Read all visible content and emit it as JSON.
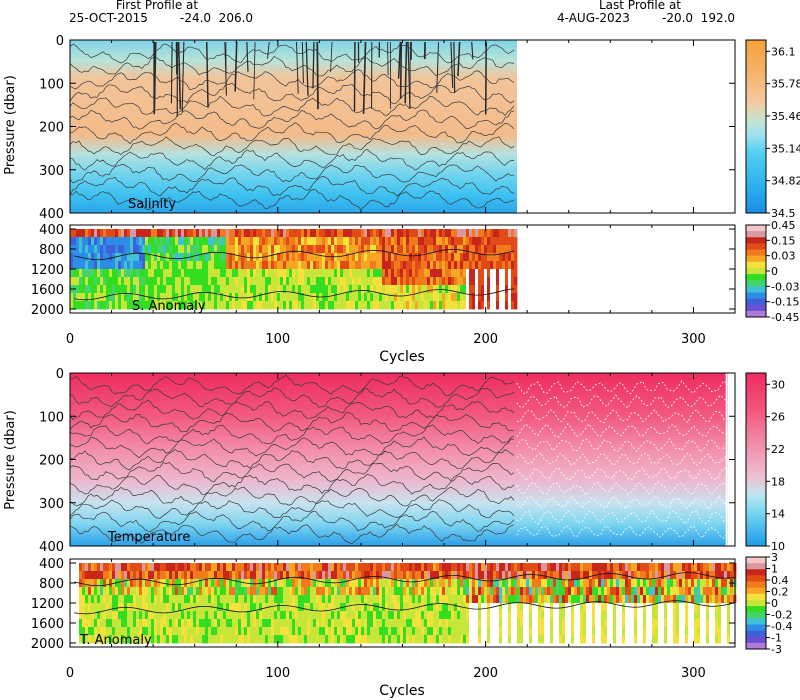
{
  "header": {
    "first_label": "First Profile at",
    "first_date": "25-OCT-2015",
    "first_pos": "-24.0  206.0",
    "last_label": "Last Profile at",
    "last_date": "4-AUG-2023",
    "last_pos": "-20.0  192.0"
  },
  "chart_data": [
    {
      "type": "heatmap",
      "name": "Salinity",
      "ylabel": "Pressure (dbar)",
      "yticks": [
        "0",
        "100",
        "200",
        "300",
        "400"
      ],
      "x_range": [
        0,
        320
      ],
      "y_range": [
        0,
        400
      ],
      "data_cycles": [
        0,
        215
      ],
      "colorbar_ticks": [
        "36.1",
        "35.78",
        "35.46",
        "35.14",
        "34.82",
        "34.5"
      ],
      "colorbar_colors": [
        "#f5a13c",
        "#f9bd7c",
        "#f2c9a0",
        "#c8e3d0",
        "#8ddcea",
        "#4ecbf0",
        "#2aa9ec",
        "#1e8ee6"
      ]
    },
    {
      "type": "heatmap",
      "name": "S. Anomaly",
      "yticks": [
        "400",
        "800",
        "1200",
        "1600",
        "2000"
      ],
      "y_range": [
        400,
        2000
      ],
      "data_cycles": [
        0,
        215
      ],
      "colorbar_ticks": [
        "0.45",
        "0.15",
        "0.03",
        "0",
        "-0.03",
        "-0.15",
        "-0.45"
      ]
    },
    {
      "type": "heatmap",
      "name": "Temperature",
      "ylabel": "Pressure (dbar)",
      "yticks": [
        "0",
        "100",
        "200",
        "300",
        "400"
      ],
      "y_range": [
        0,
        400
      ],
      "data_cycles": [
        0,
        320
      ],
      "colorbar_ticks": [
        "30",
        "26",
        "22",
        "18",
        "14",
        "10"
      ],
      "colorbar_colors": [
        "#ee2d5f",
        "#f25a80",
        "#f38aa6",
        "#efb3cb",
        "#cfe6f0",
        "#8fdcf0",
        "#4ec7f2",
        "#1e9bea"
      ]
    },
    {
      "type": "heatmap",
      "name": "T. Anomaly",
      "xlabel": "Cycles",
      "yticks": [
        "400",
        "800",
        "1200",
        "1600",
        "2000"
      ],
      "y_range": [
        400,
        2000
      ],
      "data_cycles": [
        0,
        320
      ],
      "colorbar_ticks": [
        "3",
        "1",
        "0.4",
        "0.2",
        "0",
        "-0.2",
        "-0.4",
        "-1",
        "-3"
      ]
    }
  ],
  "xaxis": {
    "ticks": [
      "0",
      "100",
      "200",
      "300"
    ],
    "label": "Cycles"
  },
  "anom_colors": [
    "#b07bd8",
    "#6a4fd0",
    "#3d62d8",
    "#2e8ee6",
    "#3fc1d8",
    "#45d36a",
    "#33dd22",
    "#c8e63a",
    "#f4e23a",
    "#f6a623",
    "#f07a1c",
    "#e24a18",
    "#c8261a",
    "#d89aa0",
    "#f4c6cc"
  ]
}
